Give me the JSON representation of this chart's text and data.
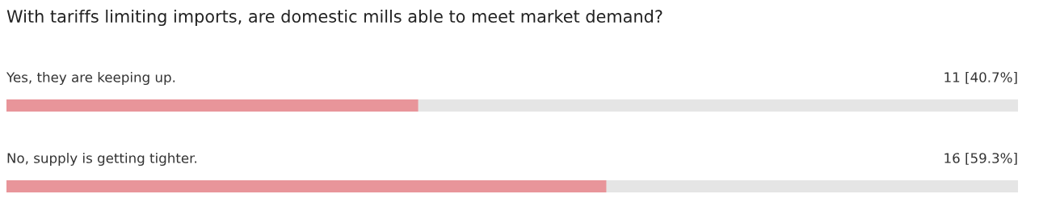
{
  "chart_data": {
    "type": "bar",
    "orientation": "horizontal",
    "title": "With tariffs limiting imports, are domestic mills able to meet market demand?",
    "categories": [
      "Yes, they are keeping up.",
      "No, supply is getting tighter."
    ],
    "values": [
      40.7,
      59.3
    ],
    "value_labels": [
      "11 [40.7%]",
      "16 [59.3%]"
    ],
    "color": "#e8959a",
    "xlim": [
      0,
      100
    ],
    "tick_labels": false
  }
}
